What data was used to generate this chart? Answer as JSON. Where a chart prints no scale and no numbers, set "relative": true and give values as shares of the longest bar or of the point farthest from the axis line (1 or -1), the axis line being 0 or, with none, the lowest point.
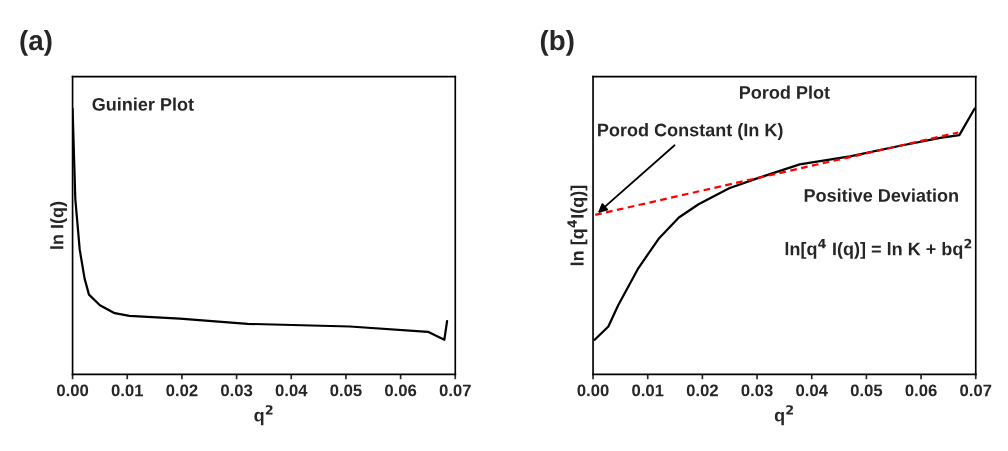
{
  "chart_data": [
    {
      "type": "line",
      "title": "(a)",
      "subtitle": "Guinier Plot",
      "xlabel": "q$^{2}$",
      "ylabel": "ln I(q)",
      "relative": true,
      "xlim": [
        0,
        0.07
      ],
      "xticks": [
        {
          "value": 0,
          "label": "0.00"
        },
        {
          "value": 0.01,
          "label": "0.01"
        },
        {
          "value": 0.02,
          "label": "0.02"
        },
        {
          "value": 0.03,
          "label": "0.03"
        },
        {
          "value": 0.04,
          "label": "0.04"
        },
        {
          "value": 0.05,
          "label": "0.05"
        },
        {
          "value": 0.06,
          "label": "0.06"
        },
        {
          "value": 0.07,
          "label": "0.07"
        }
      ],
      "series": [
        {
          "color": "#000000",
          "x": [
            0,
            0.0005,
            0.0013,
            0.0022,
            0.003,
            0.005,
            0.0077,
            0.0104,
            0.0196,
            0.032,
            0.0507,
            0.065,
            0.068,
            0.0685
          ],
          "values": [
            1,
            0.66,
            0.47,
            0.36,
            0.3,
            0.26,
            0.23,
            0.22,
            0.21,
            0.19,
            0.18,
            0.16,
            0.13,
            0.2
          ]
        }
      ]
    },
    {
      "type": "line",
      "title": "(b)",
      "subtitle": "Porod Plot",
      "xlabel": "q$^{2}$",
      "ylabel": "ln [q$^{4}$I(q)]",
      "relative": true,
      "xlim": [
        0,
        0.07
      ],
      "xticks": [
        {
          "value": 0,
          "label": "0.00"
        },
        {
          "value": 0.01,
          "label": "0.01"
        },
        {
          "value": 0.02,
          "label": "0.02"
        },
        {
          "value": 0.03,
          "label": "0.03"
        },
        {
          "value": 0.04,
          "label": "0.04"
        },
        {
          "value": 0.05,
          "label": "0.05"
        },
        {
          "value": 0.06,
          "label": "0.06"
        },
        {
          "value": 0.07,
          "label": "0.07"
        }
      ],
      "annotations": [
        {
          "text": "Porod Constant (In K)",
          "x": 0.0005,
          "y": 0.6
        },
        "Positive Deviation",
        "ln[q$^{4}$ I(q)] = ln K + bq$^{2}$"
      ],
      "series": [
        {
          "color": "#000000",
          "x": [
            0.0003,
            0.0028,
            0.0046,
            0.0083,
            0.012,
            0.0157,
            0.0193,
            0.0249,
            0.0304,
            0.0378,
            0.047,
            0.0562,
            0.0635,
            0.067,
            0.0698
          ],
          "values": [
            0.13,
            0.18,
            0.26,
            0.4,
            0.51,
            0.59,
            0.64,
            0.7,
            0.74,
            0.79,
            0.82,
            0.86,
            0.89,
            0.9,
            1
          ]
        },
        {
          "type": "line",
          "color": "#ff0000",
          "line_style": "dashed",
          "x": [
            0.0004,
            0.0668
          ],
          "values": [
            0.6,
            0.91
          ]
        }
      ]
    }
  ]
}
